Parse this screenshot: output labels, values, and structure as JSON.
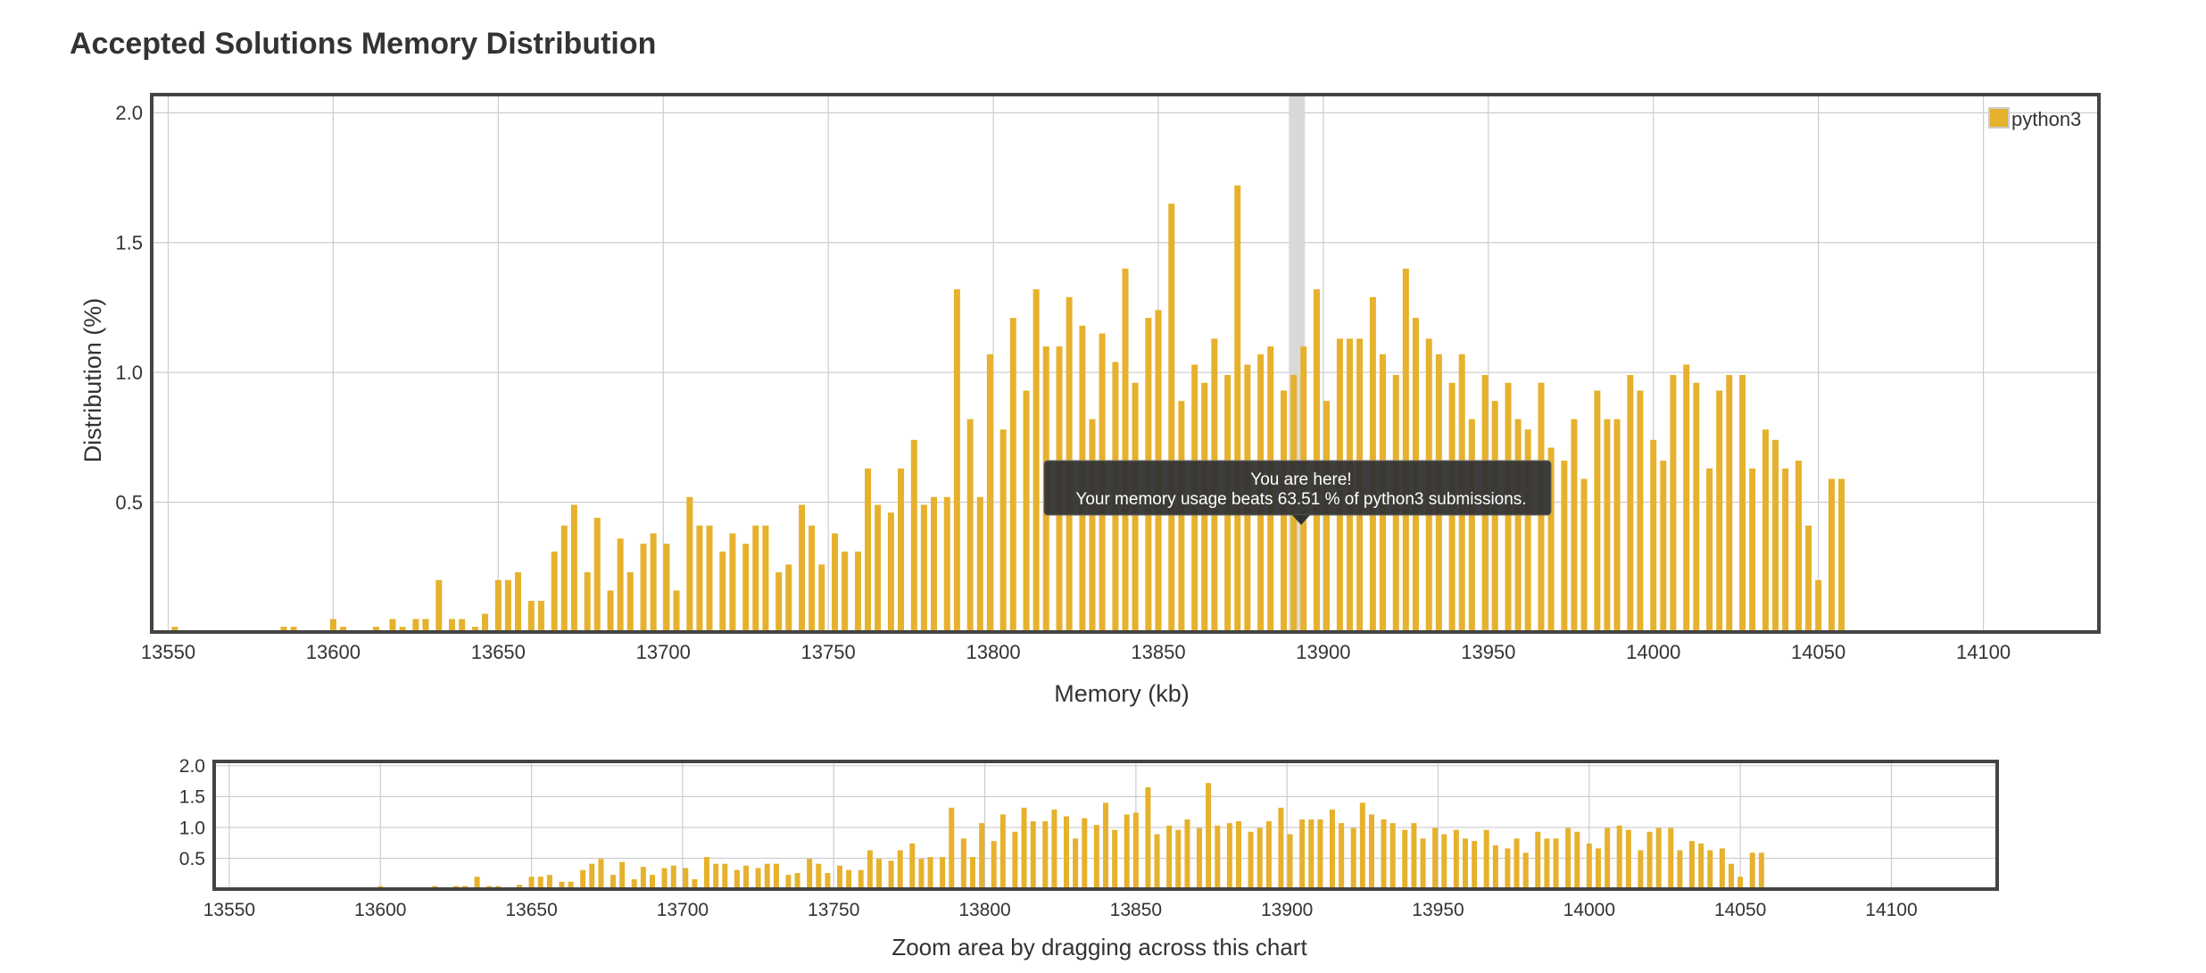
{
  "page_title": "Accepted Solutions Memory Distribution",
  "colors": {
    "bar": "#e6b12d",
    "grid": "#cccccc",
    "frame": "#444444",
    "highlight": "#d9d9d9",
    "tooltip_bg": "#333333"
  },
  "legend": {
    "label": "python3"
  },
  "tooltip": {
    "line1": "You are here!",
    "line2": "Your memory usage beats 63.51 % of python3 submissions."
  },
  "navigator": {
    "label": "Zoom area by dragging across this chart"
  },
  "chart_data": {
    "type": "bar",
    "title": "Accepted Solutions Memory Distribution",
    "xlabel": "Memory (kb)",
    "ylabel": "Distribution (%)",
    "xlim": [
      13545,
      14135
    ],
    "ylim": [
      0,
      2.07
    ],
    "x_ticks": [
      13550,
      13600,
      13650,
      13700,
      13750,
      13800,
      13850,
      13900,
      13950,
      14000,
      14050,
      14100
    ],
    "y_ticks": [
      0.5,
      1.0,
      1.5,
      2.0
    ],
    "y_tick_labels": [
      "0.5",
      "1.0",
      "1.5",
      "2.0"
    ],
    "navigator_y_ticks": [
      0.5,
      1.0,
      1.5,
      2.0
    ],
    "navigator_y_tick_labels": [
      "0.5",
      "1.0",
      "1.5",
      "2.0"
    ],
    "grid": true,
    "legend_position": "top-right",
    "highlight_x": 13892,
    "series": [
      {
        "name": "python3",
        "points": [
          [
            13552,
            0.02
          ],
          [
            13585,
            0.02
          ],
          [
            13588,
            0.02
          ],
          [
            13600,
            0.05
          ],
          [
            13603,
            0.02
          ],
          [
            13613,
            0.02
          ],
          [
            13618,
            0.05
          ],
          [
            13621,
            0.02
          ],
          [
            13625,
            0.05
          ],
          [
            13628,
            0.05
          ],
          [
            13632,
            0.2
          ],
          [
            13636,
            0.05
          ],
          [
            13639,
            0.05
          ],
          [
            13643,
            0.02
          ],
          [
            13646,
            0.07
          ],
          [
            13650,
            0.2
          ],
          [
            13653,
            0.2
          ],
          [
            13656,
            0.23
          ],
          [
            13660,
            0.12
          ],
          [
            13663,
            0.12
          ],
          [
            13667,
            0.31
          ],
          [
            13670,
            0.41
          ],
          [
            13673,
            0.49
          ],
          [
            13677,
            0.23
          ],
          [
            13680,
            0.44
          ],
          [
            13684,
            0.16
          ],
          [
            13687,
            0.36
          ],
          [
            13690,
            0.23
          ],
          [
            13694,
            0.34
          ],
          [
            13697,
            0.38
          ],
          [
            13701,
            0.34
          ],
          [
            13704,
            0.16
          ],
          [
            13708,
            0.52
          ],
          [
            13711,
            0.41
          ],
          [
            13714,
            0.41
          ],
          [
            13718,
            0.31
          ],
          [
            13721,
            0.38
          ],
          [
            13725,
            0.34
          ],
          [
            13728,
            0.41
          ],
          [
            13731,
            0.41
          ],
          [
            13735,
            0.23
          ],
          [
            13738,
            0.26
          ],
          [
            13742,
            0.49
          ],
          [
            13745,
            0.41
          ],
          [
            13748,
            0.26
          ],
          [
            13752,
            0.38
          ],
          [
            13755,
            0.31
          ],
          [
            13759,
            0.31
          ],
          [
            13762,
            0.63
          ],
          [
            13765,
            0.49
          ],
          [
            13769,
            0.46
          ],
          [
            13772,
            0.63
          ],
          [
            13776,
            0.74
          ],
          [
            13779,
            0.49
          ],
          [
            13782,
            0.52
          ],
          [
            13786,
            0.52
          ],
          [
            13789,
            1.32
          ],
          [
            13793,
            0.82
          ],
          [
            13796,
            0.52
          ],
          [
            13799,
            1.07
          ],
          [
            13803,
            0.78
          ],
          [
            13806,
            1.21
          ],
          [
            13810,
            0.93
          ],
          [
            13813,
            1.32
          ],
          [
            13816,
            1.1
          ],
          [
            13820,
            1.1
          ],
          [
            13823,
            1.29
          ],
          [
            13827,
            1.18
          ],
          [
            13830,
            0.82
          ],
          [
            13833,
            1.15
          ],
          [
            13837,
            1.04
          ],
          [
            13840,
            1.4
          ],
          [
            13843,
            0.96
          ],
          [
            13847,
            1.21
          ],
          [
            13850,
            1.24
          ],
          [
            13854,
            1.65
          ],
          [
            13857,
            0.89
          ],
          [
            13861,
            1.03
          ],
          [
            13864,
            0.96
          ],
          [
            13867,
            1.13
          ],
          [
            13871,
            0.99
          ],
          [
            13874,
            1.72
          ],
          [
            13877,
            1.03
          ],
          [
            13881,
            1.07
          ],
          [
            13884,
            1.1
          ],
          [
            13888,
            0.93
          ],
          [
            13891,
            0.99
          ],
          [
            13894,
            1.1
          ],
          [
            13898,
            1.32
          ],
          [
            13901,
            0.89
          ],
          [
            13905,
            1.13
          ],
          [
            13908,
            1.13
          ],
          [
            13911,
            1.13
          ],
          [
            13915,
            1.29
          ],
          [
            13918,
            1.07
          ],
          [
            13922,
            0.99
          ],
          [
            13925,
            1.4
          ],
          [
            13928,
            1.21
          ],
          [
            13932,
            1.13
          ],
          [
            13935,
            1.07
          ],
          [
            13939,
            0.96
          ],
          [
            13942,
            1.07
          ],
          [
            13945,
            0.82
          ],
          [
            13949,
            0.99
          ],
          [
            13952,
            0.89
          ],
          [
            13956,
            0.96
          ],
          [
            13959,
            0.82
          ],
          [
            13962,
            0.78
          ],
          [
            13966,
            0.96
          ],
          [
            13969,
            0.71
          ],
          [
            13973,
            0.66
          ],
          [
            13976,
            0.82
          ],
          [
            13979,
            0.59
          ],
          [
            13983,
            0.93
          ],
          [
            13986,
            0.82
          ],
          [
            13989,
            0.82
          ],
          [
            13993,
            0.99
          ],
          [
            13996,
            0.93
          ],
          [
            14000,
            0.74
          ],
          [
            14003,
            0.66
          ],
          [
            14006,
            0.99
          ],
          [
            14010,
            1.03
          ],
          [
            14013,
            0.96
          ],
          [
            14017,
            0.63
          ],
          [
            14020,
            0.93
          ],
          [
            14023,
            0.99
          ],
          [
            14027,
            0.99
          ],
          [
            14030,
            0.63
          ],
          [
            14034,
            0.78
          ],
          [
            14037,
            0.74
          ],
          [
            14040,
            0.63
          ],
          [
            14044,
            0.66
          ],
          [
            14047,
            0.41
          ],
          [
            14050,
            0.2
          ],
          [
            14054,
            0.59
          ],
          [
            14057,
            0.59
          ]
        ]
      }
    ]
  }
}
